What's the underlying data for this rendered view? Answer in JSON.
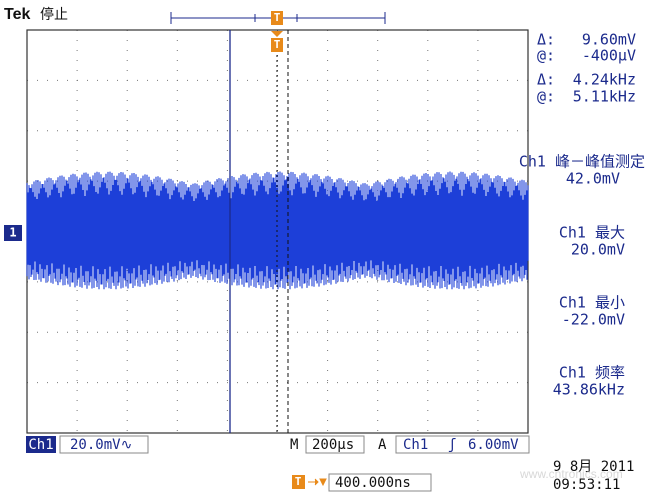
{
  "header": {
    "brand": "Tek",
    "status": "停止",
    "trigger_marker": "T"
  },
  "cursor_readout": [
    {
      "symbol": "Δ:",
      "value": "9.60mV"
    },
    {
      "symbol": "@:",
      "value": "-400µV"
    },
    {
      "symbol": "Δ:",
      "value": "4.24kHz"
    },
    {
      "symbol": "@:",
      "value": "5.11kHz"
    }
  ],
  "measurements": [
    {
      "label": "Ch1 峰－峰值测定",
      "value": "42.0mV"
    },
    {
      "label": "Ch1 最大",
      "value": "20.0mV"
    },
    {
      "label": "Ch1 最小",
      "value": "-22.0mV"
    },
    {
      "label": "Ch1 频率",
      "value": "43.86kHz"
    }
  ],
  "channel_marker": "1",
  "status_bar": {
    "channel": "Ch1",
    "scale": "20.0mV∿",
    "timebase_label": "M",
    "timebase": "200µs",
    "trigger_label": "A",
    "trigger_source": "Ch1",
    "trigger_slope": "ʃ",
    "trigger_level": "6.00mV",
    "trigger_position_marker": "T",
    "trigger_position": "400.000ns"
  },
  "date": "9 8月  2011",
  "time": "09:53:11",
  "watermark": "www.cntronics.com"
}
